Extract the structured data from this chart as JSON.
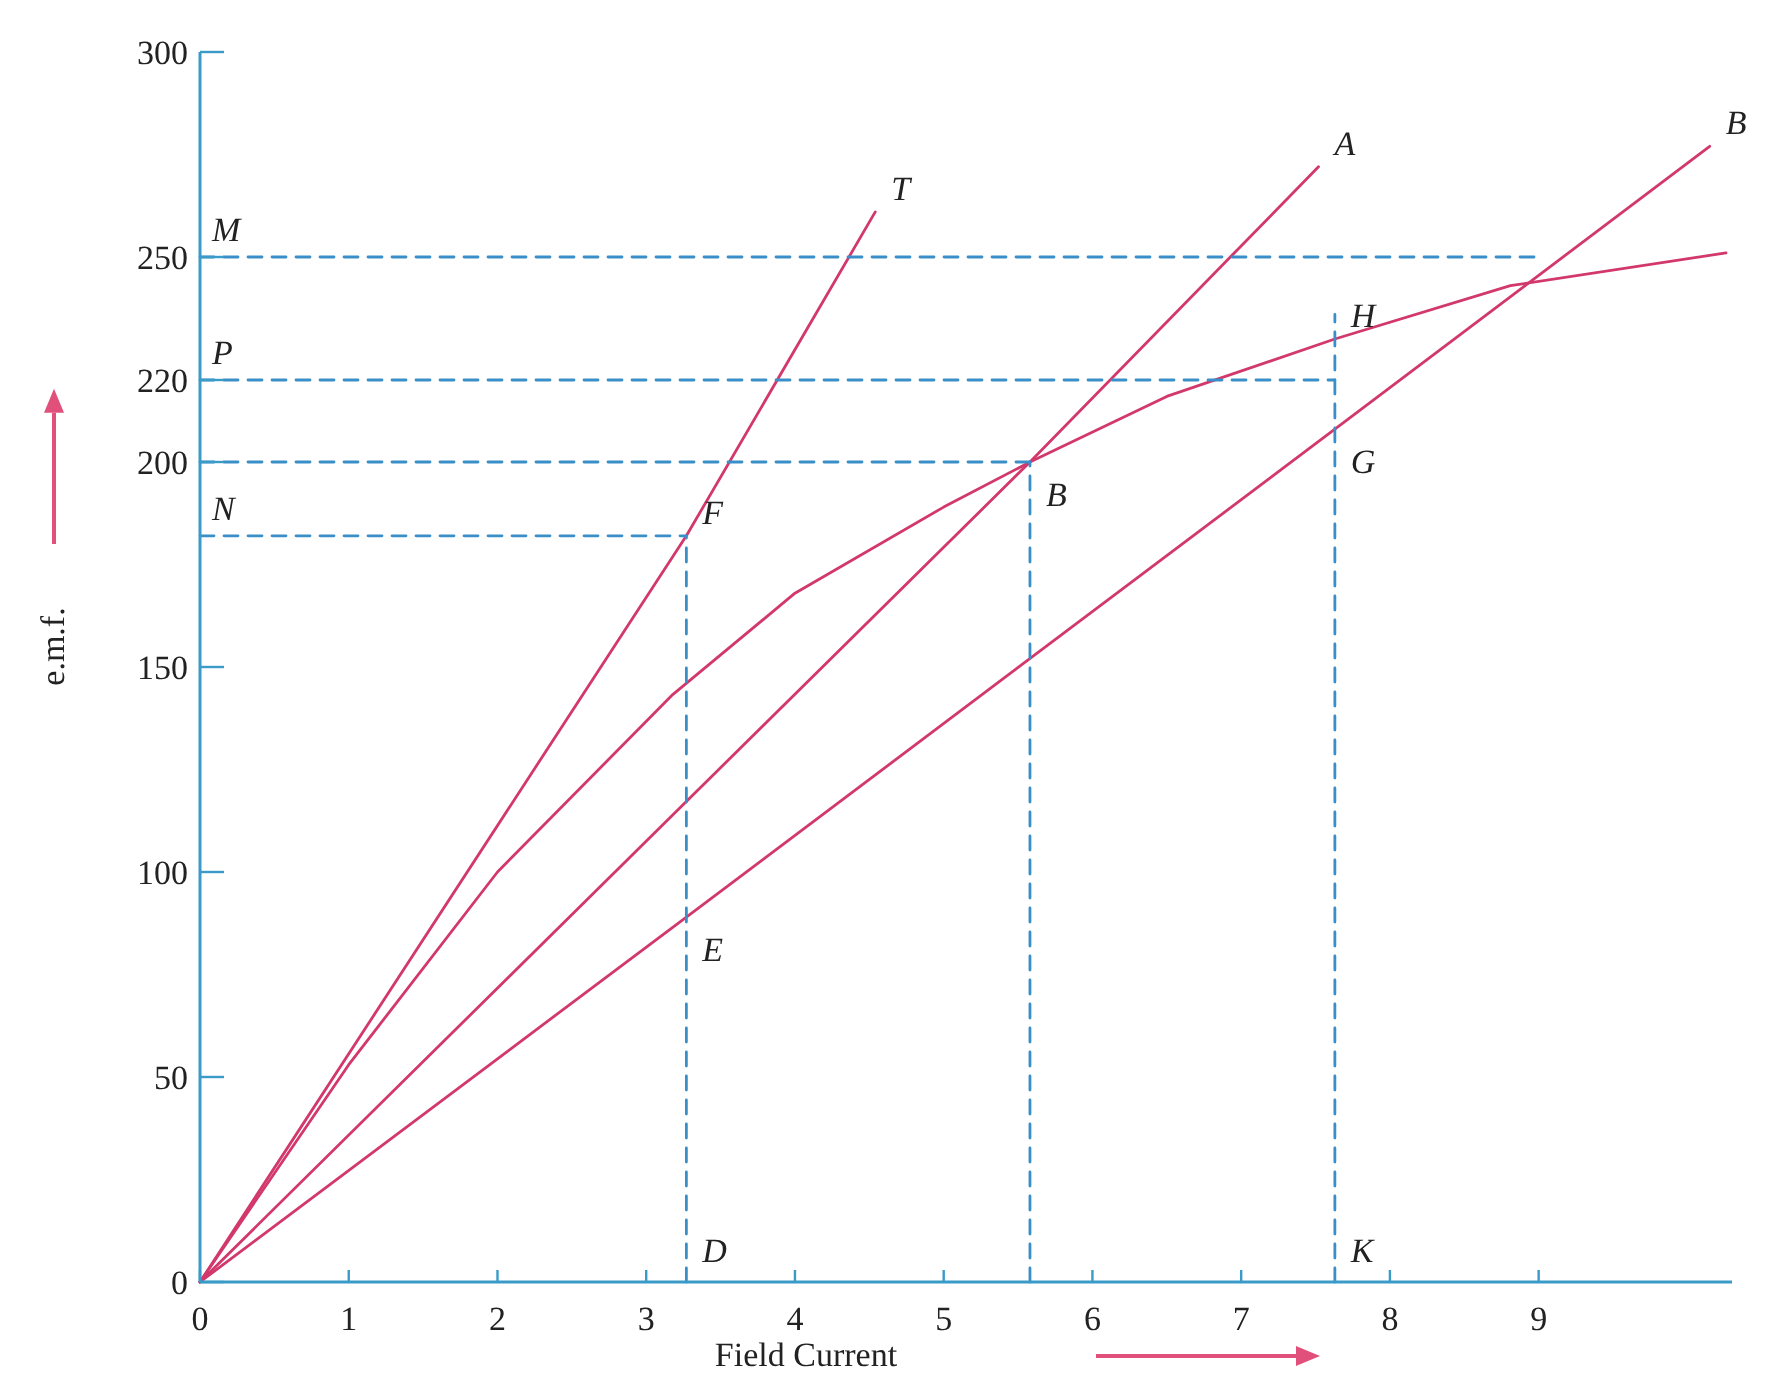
{
  "chart_data": {
    "type": "line",
    "xlabel": "Field Current",
    "ylabel": "e.m.f.",
    "xlim": [
      0,
      10.3
    ],
    "ylim": [
      0,
      300
    ],
    "xticks": [
      0,
      1,
      2,
      3,
      4,
      5,
      6,
      7,
      8,
      9
    ],
    "yticks": [
      0,
      50,
      100,
      150,
      200,
      220,
      250,
      300
    ],
    "grid": false,
    "marker": "none",
    "series": [
      {
        "color": "#d2386c",
        "line_style": "solid",
        "x": [
          0,
          3.27,
          4.54
        ],
        "values": [
          0,
          182,
          261
        ]
      },
      {
        "color": "#d2386c",
        "line_style": "solid",
        "x": [
          0,
          5.58,
          7.52
        ],
        "values": [
          0,
          200,
          272
        ]
      },
      {
        "color": "#d2386c",
        "line_style": "solid",
        "x": [
          0,
          3.27,
          7.63,
          10.15
        ],
        "values": [
          0,
          89,
          208,
          277
        ]
      },
      {
        "color": "#d2386c",
        "line_style": "solid",
        "x": [
          0,
          1,
          2,
          3.17,
          4,
          5,
          5.58,
          6.5,
          7.63,
          8.81,
          10.26
        ],
        "values": [
          0,
          53,
          100,
          143,
          168,
          189,
          200,
          216,
          230,
          243,
          251
        ]
      },
      {
        "color": "#3a8fc8",
        "line_style": "dashed",
        "x": [
          0,
          9
        ],
        "values": [
          250,
          250
        ]
      },
      {
        "color": "#3a8fc8",
        "line_style": "dashed",
        "x": [
          0,
          7.63
        ],
        "values": [
          220,
          220
        ]
      },
      {
        "color": "#3a8fc8",
        "line_style": "dashed",
        "x": [
          0,
          5.58
        ],
        "values": [
          200,
          200
        ]
      },
      {
        "color": "#3a8fc8",
        "line_style": "dashed",
        "x": [
          0,
          3.27
        ],
        "values": [
          182,
          182
        ]
      },
      {
        "color": "#3a8fc8",
        "line_style": "dashed",
        "x": [
          3.27,
          3.27
        ],
        "values": [
          0,
          182
        ]
      },
      {
        "color": "#3a8fc8",
        "line_style": "dashed",
        "x": [
          5.58,
          5.58
        ],
        "values": [
          0,
          200
        ]
      },
      {
        "color": "#3a8fc8",
        "line_style": "dashed",
        "x": [
          7.63,
          7.63
        ],
        "values": [
          0,
          236
        ]
      }
    ],
    "annotations": [
      {
        "text": "M",
        "x": 0,
        "y": 250
      },
      {
        "text": "P",
        "x": 0,
        "y": 220
      },
      {
        "text": "N",
        "x": 0,
        "y": 182
      },
      {
        "text": "F",
        "x": 3.27,
        "y": 182
      },
      {
        "text": "T",
        "x": 4.54,
        "y": 261
      },
      {
        "text": "A",
        "x": 7.52,
        "y": 272
      },
      {
        "text": "B",
        "x": 5.58,
        "y": 200
      },
      {
        "text": "B",
        "x": 10.15,
        "y": 277
      },
      {
        "text": "H",
        "x": 7.63,
        "y": 230
      },
      {
        "text": "G",
        "x": 7.63,
        "y": 208
      },
      {
        "text": "E",
        "x": 3.27,
        "y": 89
      },
      {
        "text": "D",
        "x": 3.27,
        "y": 0
      },
      {
        "text": "K",
        "x": 7.63,
        "y": 0
      }
    ]
  }
}
